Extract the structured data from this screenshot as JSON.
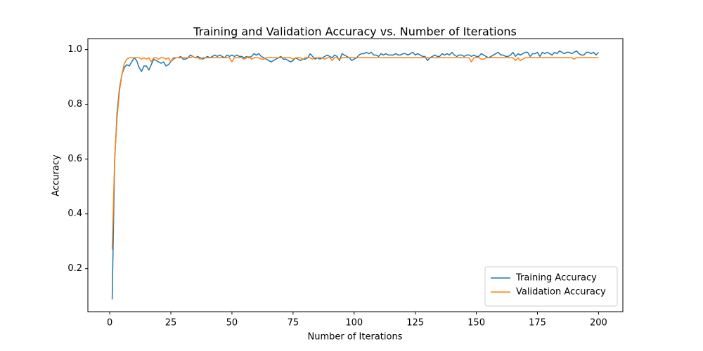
{
  "chart_data": {
    "type": "line",
    "title": "Training and Validation Accuracy vs. Number of Iterations",
    "xlabel": "Number of Iterations",
    "ylabel": "Accuracy",
    "x": [
      1,
      2,
      3,
      4,
      5,
      6,
      7,
      8,
      9,
      10,
      11,
      12,
      13,
      14,
      15,
      16,
      17,
      18,
      19,
      20,
      21,
      22,
      23,
      24,
      25,
      26,
      27,
      28,
      29,
      30,
      31,
      32,
      33,
      34,
      35,
      36,
      37,
      38,
      39,
      40,
      41,
      42,
      43,
      44,
      45,
      46,
      47,
      48,
      49,
      50,
      51,
      52,
      53,
      54,
      55,
      56,
      57,
      58,
      59,
      60,
      61,
      62,
      63,
      64,
      65,
      66,
      67,
      68,
      69,
      70,
      71,
      72,
      73,
      74,
      75,
      76,
      77,
      78,
      79,
      80,
      81,
      82,
      83,
      84,
      85,
      86,
      87,
      88,
      89,
      90,
      91,
      92,
      93,
      94,
      95,
      96,
      97,
      98,
      99,
      100,
      101,
      102,
      103,
      104,
      105,
      106,
      107,
      108,
      109,
      110,
      111,
      112,
      113,
      114,
      115,
      116,
      117,
      118,
      119,
      120,
      121,
      122,
      123,
      124,
      125,
      126,
      127,
      128,
      129,
      130,
      131,
      132,
      133,
      134,
      135,
      136,
      137,
      138,
      139,
      140,
      141,
      142,
      143,
      144,
      145,
      146,
      147,
      148,
      149,
      150,
      151,
      152,
      153,
      154,
      155,
      156,
      157,
      158,
      159,
      160,
      161,
      162,
      163,
      164,
      165,
      166,
      167,
      168,
      169,
      170,
      171,
      172,
      173,
      174,
      175,
      176,
      177,
      178,
      179,
      180,
      181,
      182,
      183,
      184,
      185,
      186,
      187,
      188,
      189,
      190,
      191,
      192,
      193,
      194,
      195,
      196,
      197,
      198,
      199,
      200
    ],
    "series": [
      {
        "name": "Training Accuracy",
        "color": "#1f77b4",
        "values": [
          0.088,
          0.59,
          0.77,
          0.86,
          0.91,
          0.935,
          0.945,
          0.94,
          0.955,
          0.97,
          0.96,
          0.935,
          0.92,
          0.94,
          0.94,
          0.925,
          0.945,
          0.965,
          0.96,
          0.955,
          0.95,
          0.955,
          0.94,
          0.945,
          0.955,
          0.965,
          0.97,
          0.97,
          0.975,
          0.965,
          0.965,
          0.97,
          0.98,
          0.975,
          0.97,
          0.975,
          0.97,
          0.965,
          0.97,
          0.975,
          0.97,
          0.975,
          0.98,
          0.975,
          0.98,
          0.975,
          0.97,
          0.98,
          0.975,
          0.98,
          0.975,
          0.98,
          0.975,
          0.975,
          0.97,
          0.975,
          0.97,
          0.975,
          0.985,
          0.98,
          0.985,
          0.975,
          0.97,
          0.965,
          0.96,
          0.955,
          0.96,
          0.965,
          0.97,
          0.975,
          0.965,
          0.965,
          0.96,
          0.955,
          0.96,
          0.97,
          0.965,
          0.96,
          0.965,
          0.965,
          0.97,
          0.985,
          0.975,
          0.965,
          0.97,
          0.965,
          0.97,
          0.975,
          0.98,
          0.975,
          0.97,
          0.98,
          0.975,
          0.96,
          0.985,
          0.98,
          0.975,
          0.97,
          0.96,
          0.965,
          0.97,
          0.98,
          0.985,
          0.985,
          0.99,
          0.985,
          0.99,
          0.98,
          0.98,
          0.975,
          0.985,
          0.98,
          0.985,
          0.98,
          0.98,
          0.98,
          0.985,
          0.98,
          0.98,
          0.985,
          0.985,
          0.98,
          0.985,
          0.99,
          0.98,
          0.985,
          0.98,
          0.975,
          0.975,
          0.96,
          0.97,
          0.975,
          0.98,
          0.975,
          0.975,
          0.985,
          0.98,
          0.985,
          0.98,
          0.99,
          0.98,
          0.975,
          0.98,
          0.98,
          0.975,
          0.98,
          0.98,
          0.975,
          0.98,
          0.975,
          0.975,
          0.985,
          0.98,
          0.975,
          0.97,
          0.975,
          0.98,
          0.985,
          0.99,
          0.98,
          0.98,
          0.975,
          0.975,
          0.98,
          0.99,
          0.975,
          0.985,
          0.98,
          0.985,
          0.99,
          0.99,
          0.975,
          0.985,
          0.985,
          0.99,
          0.975,
          0.99,
          0.985,
          0.99,
          0.985,
          0.98,
          0.99,
          0.985,
          0.995,
          0.99,
          0.985,
          0.99,
          0.99,
          0.985,
          0.99,
          0.995,
          0.985,
          0.98,
          0.98,
          0.99,
          0.99,
          0.985,
          0.99,
          0.98,
          0.99
        ]
      },
      {
        "name": "Validation Accuracy",
        "color": "#ff7f0e",
        "values": [
          0.27,
          0.6,
          0.75,
          0.85,
          0.91,
          0.95,
          0.965,
          0.97,
          0.97,
          0.97,
          0.97,
          0.97,
          0.965,
          0.97,
          0.965,
          0.97,
          0.955,
          0.97,
          0.97,
          0.965,
          0.97,
          0.97,
          0.965,
          0.97,
          0.955,
          0.97,
          0.97,
          0.97,
          0.97,
          0.97,
          0.97,
          0.97,
          0.97,
          0.975,
          0.97,
          0.97,
          0.965,
          0.97,
          0.97,
          0.97,
          0.97,
          0.97,
          0.97,
          0.97,
          0.97,
          0.97,
          0.97,
          0.97,
          0.97,
          0.955,
          0.97,
          0.97,
          0.97,
          0.97,
          0.965,
          0.97,
          0.975,
          0.965,
          0.97,
          0.97,
          0.97,
          0.965,
          0.965,
          0.97,
          0.97,
          0.97,
          0.97,
          0.97,
          0.97,
          0.97,
          0.97,
          0.97,
          0.97,
          0.97,
          0.965,
          0.97,
          0.97,
          0.97,
          0.965,
          0.97,
          0.97,
          0.97,
          0.965,
          0.97,
          0.97,
          0.97,
          0.97,
          0.965,
          0.97,
          0.97,
          0.96,
          0.97,
          0.97,
          0.965,
          0.97,
          0.97,
          0.97,
          0.97,
          0.97,
          0.97,
          0.97,
          0.97,
          0.97,
          0.97,
          0.97,
          0.97,
          0.97,
          0.97,
          0.97,
          0.97,
          0.97,
          0.97,
          0.97,
          0.97,
          0.97,
          0.97,
          0.97,
          0.97,
          0.97,
          0.97,
          0.97,
          0.97,
          0.97,
          0.97,
          0.97,
          0.97,
          0.97,
          0.97,
          0.97,
          0.97,
          0.97,
          0.97,
          0.97,
          0.97,
          0.97,
          0.97,
          0.97,
          0.97,
          0.97,
          0.97,
          0.97,
          0.97,
          0.97,
          0.97,
          0.97,
          0.97,
          0.97,
          0.955,
          0.97,
          0.97,
          0.97,
          0.965,
          0.965,
          0.97,
          0.97,
          0.97,
          0.97,
          0.97,
          0.97,
          0.97,
          0.97,
          0.97,
          0.97,
          0.97,
          0.97,
          0.96,
          0.97,
          0.96,
          0.965,
          0.97,
          0.97,
          0.97,
          0.97,
          0.97,
          0.97,
          0.97,
          0.97,
          0.97,
          0.97,
          0.97,
          0.97,
          0.97,
          0.97,
          0.97,
          0.97,
          0.97,
          0.97,
          0.97,
          0.97,
          0.965,
          0.97,
          0.97,
          0.97,
          0.97,
          0.97,
          0.97,
          0.97,
          0.97,
          0.97,
          0.97
        ]
      }
    ],
    "xlim": [
      -8.95,
      209.95
    ],
    "ylim": [
      0.043,
      1.04
    ],
    "xticks": [
      0,
      25,
      50,
      75,
      100,
      125,
      150,
      175,
      200
    ],
    "yticks": [
      0.2,
      0.4,
      0.6,
      0.8,
      {
        "value": 1,
        "label": "1.0"
      }
    ],
    "legend": "lower-right"
  }
}
